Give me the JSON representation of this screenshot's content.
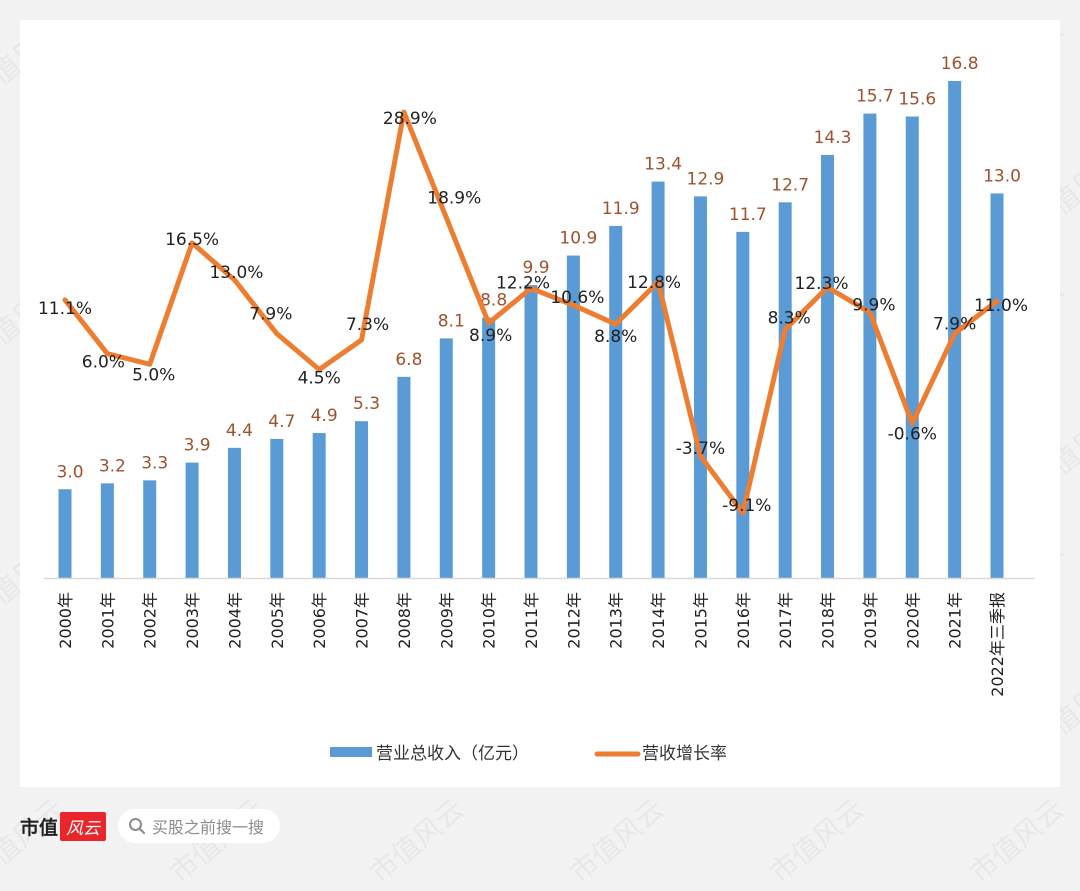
{
  "chart_data": {
    "type": "bar+line",
    "title": "",
    "categories": [
      "2000年",
      "2001年",
      "2002年",
      "2003年",
      "2004年",
      "2005年",
      "2006年",
      "2007年",
      "2008年",
      "2009年",
      "2010年",
      "2011年",
      "2012年",
      "2013年",
      "2014年",
      "2015年",
      "2016年",
      "2017年",
      "2018年",
      "2019年",
      "2020年",
      "2021年",
      "2022年三季报"
    ],
    "series": [
      {
        "name": "营业总收入（亿元）",
        "type": "bar",
        "color": "#5b9bd5",
        "label_color": "#a0522d",
        "values": [
          3.0,
          3.2,
          3.3,
          3.9,
          4.4,
          4.7,
          4.9,
          5.3,
          6.8,
          8.1,
          8.8,
          9.9,
          10.9,
          11.9,
          13.4,
          12.9,
          11.7,
          12.7,
          14.3,
          15.7,
          15.6,
          16.8,
          13.0
        ],
        "labels": [
          "3.0",
          "3.2",
          "3.3",
          "3.9",
          "4.4",
          "4.7",
          "4.9",
          "5.3",
          "6.8",
          "8.1",
          "8.8",
          "9.9",
          "10.9",
          "11.9",
          "13.4",
          "12.9",
          "11.7",
          "12.7",
          "14.3",
          "15.7",
          "15.6",
          "16.8",
          "13.0"
        ]
      },
      {
        "name": "营收增长率",
        "type": "line",
        "color": "#ed7d31",
        "label_color": "#222222",
        "values": [
          11.1,
          6.0,
          5.0,
          16.5,
          13.0,
          7.9,
          4.5,
          7.3,
          28.9,
          18.9,
          8.9,
          12.2,
          10.6,
          8.8,
          12.8,
          -3.7,
          -9.1,
          8.3,
          12.3,
          9.9,
          -0.6,
          7.9,
          11.0
        ],
        "labels": [
          "11.1%",
          "6.0%",
          "5.0%",
          "16.5%",
          "13.0%",
          "7.9%",
          "4.5%",
          "7.3%",
          "28.9%",
          "18.9%",
          "8.9%",
          "12.2%",
          "10.6%",
          "8.8%",
          "12.8%",
          "-3.7%",
          "-9.1%",
          "8.3%",
          "12.3%",
          "9.9%",
          "-0.6%",
          "7.9%",
          "11.0%"
        ]
      }
    ],
    "xlabel": "",
    "ylabel": "",
    "bar_axis_range": [
      0,
      16.8
    ],
    "line_axis_range": [
      -9.1,
      28.9
    ],
    "grid": false,
    "legend": "bottom"
  },
  "legend": {
    "bar_label": "营业总收入（亿元）",
    "line_label": "营收增长率"
  },
  "footer": {
    "brand_text": "市值",
    "brand_badge": "风云",
    "search_placeholder": "买股之前搜一搜"
  },
  "watermark_text": "市值风云"
}
